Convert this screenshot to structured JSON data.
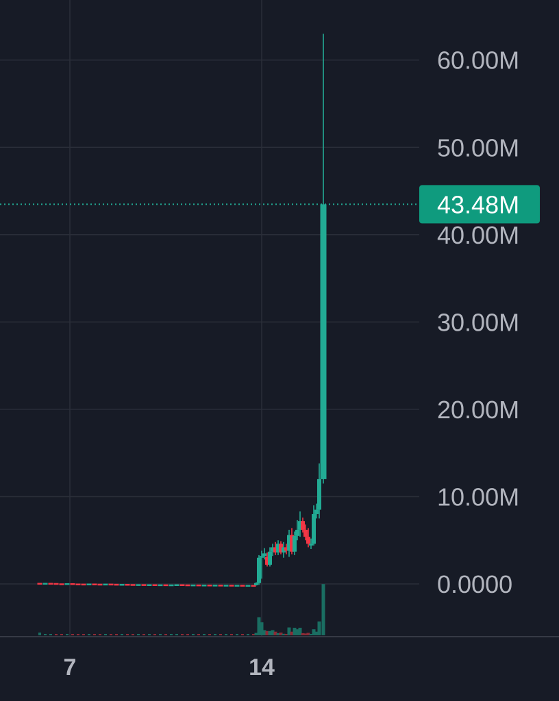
{
  "chart_data": {
    "type": "candlestick",
    "y_unit": "millions",
    "y_ticks": [
      {
        "value": 0,
        "label": "0.0000"
      },
      {
        "value": 10,
        "label": "10.00M"
      },
      {
        "value": 20,
        "label": "20.00M"
      },
      {
        "value": 30,
        "label": "30.00M"
      },
      {
        "value": 40,
        "label": "40.00M"
      },
      {
        "value": 50,
        "label": "50.00M"
      },
      {
        "value": 60,
        "label": "60.00M"
      }
    ],
    "ylim": [
      -6,
      63.5
    ],
    "x_ticks": [
      {
        "value": 7,
        "label": "7"
      },
      {
        "value": 14,
        "label": "14"
      }
    ],
    "last_price": {
      "value": 43.48,
      "label": "43.48M"
    },
    "candles": [
      {
        "x": 5.9,
        "open": 0.12,
        "high": 0.18,
        "low": 0.05,
        "close": 0.1
      },
      {
        "x": 6.1,
        "open": 0.1,
        "high": 0.16,
        "low": 0.04,
        "close": 0.12
      },
      {
        "x": 6.3,
        "open": 0.12,
        "high": 0.18,
        "low": 0.06,
        "close": 0.1
      },
      {
        "x": 6.5,
        "open": 0.1,
        "high": 0.14,
        "low": 0.04,
        "close": 0.06
      },
      {
        "x": 6.7,
        "open": 0.06,
        "high": 0.12,
        "low": 0.02,
        "close": 0.04
      },
      {
        "x": 6.9,
        "open": 0.04,
        "high": 0.1,
        "low": 0.0,
        "close": 0.08
      },
      {
        "x": 7.1,
        "open": 0.08,
        "high": 0.12,
        "low": 0.02,
        "close": 0.04
      },
      {
        "x": 7.3,
        "open": 0.04,
        "high": 0.08,
        "low": 0.0,
        "close": 0.03
      },
      {
        "x": 7.5,
        "open": 0.03,
        "high": 0.08,
        "low": 0.0,
        "close": 0.02
      },
      {
        "x": 7.7,
        "open": 0.02,
        "high": 0.06,
        "low": 0.0,
        "close": 0.04
      },
      {
        "x": 7.9,
        "open": 0.04,
        "high": 0.08,
        "low": 0.0,
        "close": 0.02
      },
      {
        "x": 8.1,
        "open": 0.02,
        "high": 0.06,
        "low": 0.0,
        "close": 0.01
      },
      {
        "x": 8.3,
        "open": 0.01,
        "high": 0.05,
        "low": -0.02,
        "close": 0.03
      },
      {
        "x": 8.5,
        "open": 0.03,
        "high": 0.06,
        "low": 0.0,
        "close": 0.01
      },
      {
        "x": 8.7,
        "open": 0.01,
        "high": 0.04,
        "low": -0.02,
        "close": -0.01
      },
      {
        "x": 8.9,
        "open": -0.01,
        "high": 0.03,
        "low": -0.04,
        "close": 0.0
      },
      {
        "x": 9.1,
        "open": 0.0,
        "high": 0.03,
        "low": -0.04,
        "close": -0.02
      },
      {
        "x": 9.3,
        "open": -0.02,
        "high": 0.02,
        "low": -0.05,
        "close": -0.04
      },
      {
        "x": 9.5,
        "open": -0.04,
        "high": 0.0,
        "low": -0.06,
        "close": -0.03
      },
      {
        "x": 9.7,
        "open": -0.03,
        "high": 0.0,
        "low": -0.06,
        "close": -0.05
      },
      {
        "x": 9.9,
        "open": -0.05,
        "high": -0.01,
        "low": -0.08,
        "close": -0.04
      },
      {
        "x": 10.1,
        "open": -0.04,
        "high": -0.01,
        "low": -0.08,
        "close": -0.06
      },
      {
        "x": 10.3,
        "open": -0.06,
        "high": -0.02,
        "low": -0.09,
        "close": -0.05
      },
      {
        "x": 10.5,
        "open": -0.05,
        "high": -0.02,
        "low": -0.09,
        "close": -0.07
      },
      {
        "x": 10.7,
        "open": -0.07,
        "high": -0.03,
        "low": -0.1,
        "close": -0.06
      },
      {
        "x": 10.9,
        "open": -0.06,
        "high": -0.02,
        "low": -0.1,
        "close": -0.04
      },
      {
        "x": 11.1,
        "open": -0.04,
        "high": -0.01,
        "low": -0.08,
        "close": -0.06
      },
      {
        "x": 11.3,
        "open": -0.06,
        "high": -0.02,
        "low": -0.1,
        "close": -0.08
      },
      {
        "x": 11.5,
        "open": -0.08,
        "high": -0.04,
        "low": -0.12,
        "close": -0.07
      },
      {
        "x": 11.7,
        "open": -0.07,
        "high": -0.03,
        "low": -0.11,
        "close": -0.09
      },
      {
        "x": 11.9,
        "open": -0.09,
        "high": -0.05,
        "low": -0.12,
        "close": -0.08
      },
      {
        "x": 12.1,
        "open": -0.08,
        "high": -0.04,
        "low": -0.12,
        "close": -0.1
      },
      {
        "x": 12.3,
        "open": -0.1,
        "high": -0.06,
        "low": -0.14,
        "close": -0.09
      },
      {
        "x": 12.5,
        "open": -0.09,
        "high": -0.05,
        "low": -0.13,
        "close": -0.11
      },
      {
        "x": 12.7,
        "open": -0.11,
        "high": -0.07,
        "low": -0.15,
        "close": -0.1
      },
      {
        "x": 12.9,
        "open": -0.1,
        "high": -0.06,
        "low": -0.14,
        "close": -0.12
      },
      {
        "x": 13.1,
        "open": -0.12,
        "high": -0.08,
        "low": -0.16,
        "close": -0.11
      },
      {
        "x": 13.3,
        "open": -0.11,
        "high": -0.07,
        "low": -0.15,
        "close": -0.13
      },
      {
        "x": 13.5,
        "open": -0.13,
        "high": -0.09,
        "low": -0.16,
        "close": -0.12
      },
      {
        "x": 13.7,
        "open": -0.12,
        "high": -0.08,
        "low": -0.16,
        "close": -0.14
      },
      {
        "x": 13.8,
        "open": -0.14,
        "high": 0.2,
        "low": -0.18,
        "close": 0.1
      },
      {
        "x": 13.9,
        "open": 0.1,
        "high": 3.3,
        "low": -0.1,
        "close": 3.0
      },
      {
        "x": 14.0,
        "open": 3.0,
        "high": 3.8,
        "low": 0.6,
        "close": 3.2
      },
      {
        "x": 14.1,
        "open": 3.2,
        "high": 4.1,
        "low": 2.8,
        "close": 3.5
      },
      {
        "x": 14.2,
        "open": 3.1,
        "high": 3.6,
        "low": 2.0,
        "close": 2.2
      },
      {
        "x": 14.3,
        "open": 2.2,
        "high": 4.2,
        "low": 2.0,
        "close": 3.7
      },
      {
        "x": 14.4,
        "open": 3.7,
        "high": 4.6,
        "low": 3.2,
        "close": 4.2
      },
      {
        "x": 14.5,
        "open": 4.2,
        "high": 4.8,
        "low": 3.3,
        "close": 3.6
      },
      {
        "x": 14.6,
        "open": 3.6,
        "high": 5.0,
        "low": 3.3,
        "close": 4.6
      },
      {
        "x": 14.7,
        "open": 4.6,
        "high": 4.9,
        "low": 3.4,
        "close": 3.6
      },
      {
        "x": 14.8,
        "open": 3.6,
        "high": 4.8,
        "low": 3.0,
        "close": 4.2
      },
      {
        "x": 14.9,
        "open": 4.2,
        "high": 4.6,
        "low": 3.4,
        "close": 3.8
      },
      {
        "x": 15.0,
        "open": 3.8,
        "high": 6.2,
        "low": 3.1,
        "close": 5.6
      },
      {
        "x": 15.1,
        "open": 5.6,
        "high": 6.4,
        "low": 3.4,
        "close": 3.7
      },
      {
        "x": 15.2,
        "open": 3.7,
        "high": 6.0,
        "low": 3.3,
        "close": 5.5
      },
      {
        "x": 15.3,
        "open": 5.5,
        "high": 7.3,
        "low": 5.0,
        "close": 6.2
      },
      {
        "x": 15.4,
        "open": 6.2,
        "high": 8.3,
        "low": 5.4,
        "close": 7.2
      },
      {
        "x": 15.5,
        "open": 7.2,
        "high": 7.6,
        "low": 5.9,
        "close": 6.2
      },
      {
        "x": 15.6,
        "open": 6.2,
        "high": 6.8,
        "low": 5.0,
        "close": 5.4
      },
      {
        "x": 15.7,
        "open": 5.4,
        "high": 6.4,
        "low": 4.2,
        "close": 4.6
      },
      {
        "x": 15.8,
        "open": 4.6,
        "high": 5.2,
        "low": 4.0,
        "close": 4.6
      },
      {
        "x": 15.9,
        "open": 4.6,
        "high": 9.0,
        "low": 4.4,
        "close": 8.0
      },
      {
        "x": 16.0,
        "open": 8.0,
        "high": 9.2,
        "low": 7.5,
        "close": 8.5
      },
      {
        "x": 16.1,
        "open": 8.5,
        "high": 13.8,
        "low": 7.5,
        "close": 12.0
      },
      {
        "x": 16.25,
        "open": 12.0,
        "high": 63.0,
        "low": 11.5,
        "close": 43.48
      }
    ],
    "volume": [
      {
        "x": 5.9,
        "value": 0.9,
        "dir": "up"
      },
      {
        "x": 6.1,
        "value": 0.3,
        "dir": "up"
      },
      {
        "x": 6.3,
        "value": 0.4,
        "dir": "up"
      },
      {
        "x": 6.5,
        "value": 0.2,
        "dir": "down"
      },
      {
        "x": 6.7,
        "value": 0.2,
        "dir": "down"
      },
      {
        "x": 6.9,
        "value": 0.2,
        "dir": "up"
      },
      {
        "x": 7.1,
        "value": 0.2,
        "dir": "down"
      },
      {
        "x": 7.3,
        "value": 0.2,
        "dir": "down"
      },
      {
        "x": 7.5,
        "value": 0.2,
        "dir": "down"
      },
      {
        "x": 7.7,
        "value": 0.2,
        "dir": "up"
      },
      {
        "x": 7.9,
        "value": 0.2,
        "dir": "down"
      },
      {
        "x": 8.1,
        "value": 0.2,
        "dir": "down"
      },
      {
        "x": 8.3,
        "value": 0.2,
        "dir": "up"
      },
      {
        "x": 8.5,
        "value": 0.2,
        "dir": "down"
      },
      {
        "x": 8.7,
        "value": 0.2,
        "dir": "down"
      },
      {
        "x": 8.9,
        "value": 0.2,
        "dir": "up"
      },
      {
        "x": 9.1,
        "value": 0.2,
        "dir": "down"
      },
      {
        "x": 9.3,
        "value": 0.2,
        "dir": "down"
      },
      {
        "x": 9.5,
        "value": 0.2,
        "dir": "up"
      },
      {
        "x": 9.7,
        "value": 0.2,
        "dir": "down"
      },
      {
        "x": 9.9,
        "value": 0.2,
        "dir": "up"
      },
      {
        "x": 10.1,
        "value": 0.2,
        "dir": "down"
      },
      {
        "x": 10.3,
        "value": 0.2,
        "dir": "up"
      },
      {
        "x": 10.5,
        "value": 0.2,
        "dir": "down"
      },
      {
        "x": 10.7,
        "value": 0.2,
        "dir": "up"
      },
      {
        "x": 10.9,
        "value": 0.2,
        "dir": "up"
      },
      {
        "x": 11.1,
        "value": 0.2,
        "dir": "down"
      },
      {
        "x": 11.3,
        "value": 0.2,
        "dir": "down"
      },
      {
        "x": 11.5,
        "value": 0.2,
        "dir": "up"
      },
      {
        "x": 11.7,
        "value": 0.2,
        "dir": "down"
      },
      {
        "x": 11.9,
        "value": 0.2,
        "dir": "up"
      },
      {
        "x": 12.1,
        "value": 0.2,
        "dir": "down"
      },
      {
        "x": 12.3,
        "value": 0.2,
        "dir": "up"
      },
      {
        "x": 12.5,
        "value": 0.2,
        "dir": "down"
      },
      {
        "x": 12.7,
        "value": 0.2,
        "dir": "up"
      },
      {
        "x": 12.9,
        "value": 0.2,
        "dir": "down"
      },
      {
        "x": 13.1,
        "value": 0.2,
        "dir": "up"
      },
      {
        "x": 13.3,
        "value": 0.2,
        "dir": "down"
      },
      {
        "x": 13.5,
        "value": 0.2,
        "dir": "up"
      },
      {
        "x": 13.7,
        "value": 0.2,
        "dir": "down"
      },
      {
        "x": 13.8,
        "value": 0.8,
        "dir": "up"
      },
      {
        "x": 13.9,
        "value": 6.0,
        "dir": "up"
      },
      {
        "x": 14.0,
        "value": 4.3,
        "dir": "up"
      },
      {
        "x": 14.1,
        "value": 1.7,
        "dir": "up"
      },
      {
        "x": 14.2,
        "value": 1.4,
        "dir": "down"
      },
      {
        "x": 14.3,
        "value": 1.4,
        "dir": "up"
      },
      {
        "x": 14.4,
        "value": 1.7,
        "dir": "up"
      },
      {
        "x": 14.5,
        "value": 1.2,
        "dir": "down"
      },
      {
        "x": 14.6,
        "value": 0.7,
        "dir": "up"
      },
      {
        "x": 14.7,
        "value": 0.9,
        "dir": "down"
      },
      {
        "x": 14.8,
        "value": 0.5,
        "dir": "up"
      },
      {
        "x": 14.9,
        "value": 0.4,
        "dir": "down"
      },
      {
        "x": 15.0,
        "value": 2.6,
        "dir": "up"
      },
      {
        "x": 15.1,
        "value": 1.2,
        "dir": "down"
      },
      {
        "x": 15.2,
        "value": 2.5,
        "dir": "up"
      },
      {
        "x": 15.3,
        "value": 2.0,
        "dir": "up"
      },
      {
        "x": 15.4,
        "value": 2.5,
        "dir": "up"
      },
      {
        "x": 15.5,
        "value": 0.7,
        "dir": "down"
      },
      {
        "x": 15.6,
        "value": 0.6,
        "dir": "down"
      },
      {
        "x": 15.7,
        "value": 0.8,
        "dir": "down"
      },
      {
        "x": 15.8,
        "value": 0.4,
        "dir": "up"
      },
      {
        "x": 15.9,
        "value": 2.0,
        "dir": "up"
      },
      {
        "x": 16.0,
        "value": 1.2,
        "dir": "up"
      },
      {
        "x": 16.1,
        "value": 4.6,
        "dir": "up"
      },
      {
        "x": 16.25,
        "value": 17.0,
        "dir": "up"
      }
    ],
    "colors": {
      "background": "#171b26",
      "grid": "#2a2e39",
      "up": "#22ab94",
      "down": "#f23645",
      "volume_up": "#1a6e62",
      "volume_down": "#8c2a36",
      "badge": "#0f9b7e",
      "tick_text": "#b2b5be"
    },
    "grid": true,
    "legend": "none"
  }
}
